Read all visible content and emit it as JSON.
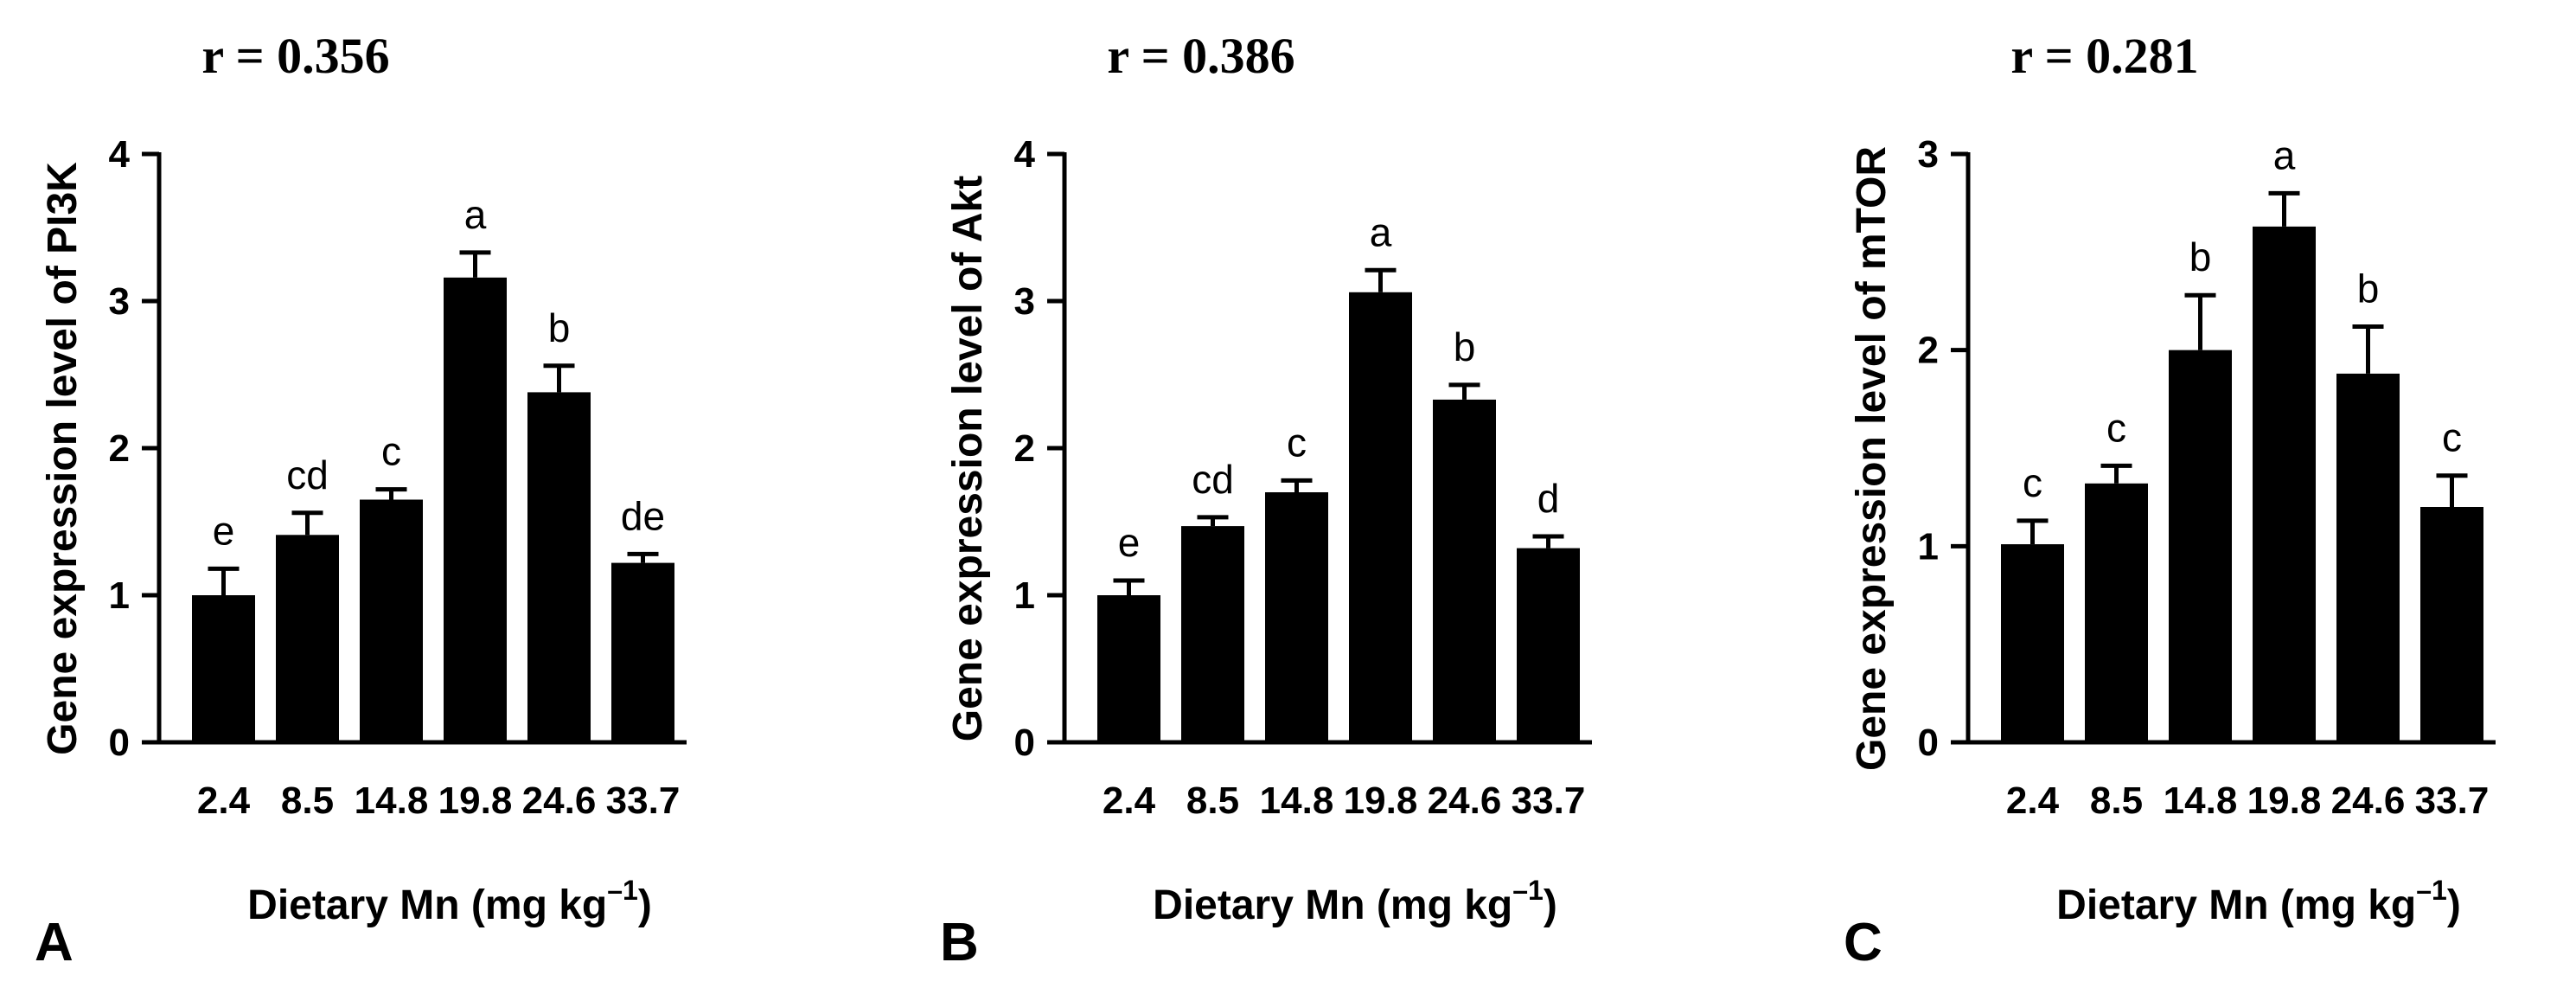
{
  "chart_data": [
    {
      "type": "bar",
      "panel": "A",
      "title": "r = 0.356",
      "xlabel": "Dietary Mn (mg kg",
      "xlabel_sup": "–1",
      "xlabel_end": ")",
      "ylabel": "Gene expression level of PI3K",
      "categories": [
        "2.4",
        "8.5",
        "14.8",
        "19.8",
        "24.6",
        "33.7"
      ],
      "values": [
        1.0,
        1.41,
        1.65,
        3.16,
        2.38,
        1.22
      ],
      "errors": [
        0.18,
        0.15,
        0.07,
        0.17,
        0.18,
        0.06
      ],
      "labels": [
        "e",
        "cd",
        "c",
        "a",
        "b",
        "de"
      ],
      "ylim": [
        0,
        4
      ],
      "yticks": [
        "0",
        "1",
        "2",
        "3",
        "4"
      ]
    },
    {
      "type": "bar",
      "panel": "B",
      "title": "r = 0.386",
      "xlabel": "Dietary Mn (mg kg",
      "xlabel_sup": "–1",
      "xlabel_end": ")",
      "ylabel": "Gene expression level of Akt",
      "categories": [
        "2.4",
        "8.5",
        "14.8",
        "19.8",
        "24.6",
        "33.7"
      ],
      "values": [
        1.0,
        1.47,
        1.7,
        3.06,
        2.33,
        1.32
      ],
      "errors": [
        0.1,
        0.06,
        0.08,
        0.15,
        0.1,
        0.08
      ],
      "labels": [
        "e",
        "cd",
        "c",
        "a",
        "b",
        "d"
      ],
      "ylim": [
        0,
        4
      ],
      "yticks": [
        "0",
        "1",
        "2",
        "3",
        "4"
      ]
    },
    {
      "type": "bar",
      "panel": "C",
      "title": "r = 0.281",
      "xlabel": "Dietary Mn (mg kg",
      "xlabel_sup": "–1",
      "xlabel_end": ")",
      "ylabel": "Gene expression level of mTOR",
      "categories": [
        "2.4",
        "8.5",
        "14.8",
        "19.8",
        "24.6",
        "33.7"
      ],
      "values": [
        1.01,
        1.32,
        2.0,
        2.63,
        1.88,
        1.2
      ],
      "errors": [
        0.12,
        0.09,
        0.28,
        0.17,
        0.24,
        0.16
      ],
      "labels": [
        "c",
        "c",
        "b",
        "a",
        "b",
        "c"
      ],
      "ylim": [
        0,
        3
      ],
      "yticks": [
        "0",
        "1",
        "2",
        "3"
      ]
    }
  ]
}
